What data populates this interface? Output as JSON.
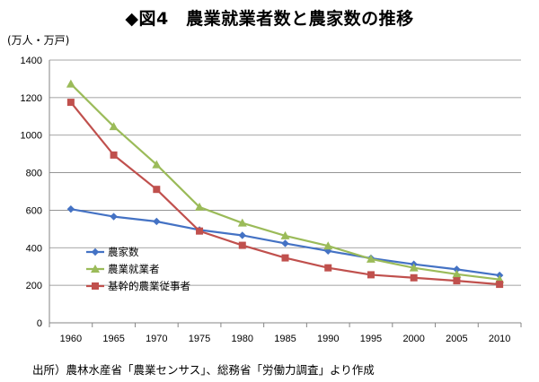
{
  "chart_data": {
    "type": "line",
    "title": "◆図4　農業就業者数と農家数の推移",
    "ylabel": "(万人・万戸)",
    "xlabel": "",
    "x": [
      "1960",
      "1965",
      "1970",
      "1975",
      "1980",
      "1985",
      "1990",
      "1995",
      "2000",
      "2005",
      "2010"
    ],
    "ylim": [
      0,
      1400
    ],
    "yticks": [
      0,
      200,
      400,
      600,
      800,
      1000,
      1200,
      1400
    ],
    "grid": true,
    "legend_position": "bottom-left",
    "series": [
      {
        "name": "農家数",
        "color": "#4472c4",
        "marker": "diamond",
        "values": [
          606,
          566,
          540,
          495,
          466,
          423,
          383,
          344,
          312,
          285,
          253
        ]
      },
      {
        "name": "農業就業者",
        "color": "#9bbb59",
        "marker": "triangle",
        "values": [
          1273,
          1046,
          843,
          617,
          532,
          464,
          410,
          340,
          293,
          259,
          231
        ]
      },
      {
        "name": "基幹的農業従事者",
        "color": "#c0504d",
        "marker": "square",
        "values": [
          1175,
          894,
          711,
          489,
          413,
          346,
          293,
          256,
          240,
          224,
          205
        ]
      }
    ]
  },
  "source_note": "出所）農林水産省「農業センサス」、総務省「労働力調査」より作成"
}
